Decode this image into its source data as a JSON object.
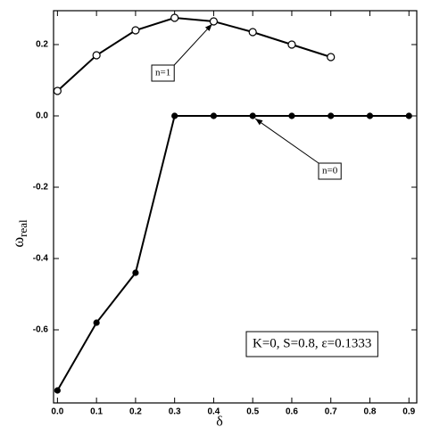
{
  "chart_data": {
    "type": "line",
    "x_label": "δ",
    "y_label": "ω",
    "y_label_subscript": "real",
    "annotation": "K=0, S=0.8, ε=0.1333",
    "x": [
      0.0,
      0.1,
      0.2,
      0.3,
      0.4,
      0.5,
      0.6,
      0.7,
      0.8,
      0.9
    ],
    "series": [
      {
        "name": "n=1",
        "color": "#000000",
        "marker": "open",
        "values": [
          0.07,
          0.17,
          0.24,
          0.275,
          0.265,
          0.235,
          0.2,
          0.165,
          null,
          null
        ]
      },
      {
        "name": "n=0",
        "color": "#000000",
        "marker": "filled",
        "values": [
          -0.77,
          -0.58,
          -0.44,
          0,
          0,
          0,
          0,
          0,
          0,
          0
        ]
      }
    ],
    "xlim": [
      -0.01,
      0.92
    ],
    "ylim": [
      -0.805,
      0.295
    ],
    "xticks": [
      {
        "value": 0,
        "label": "0.0"
      },
      0.1,
      0.2,
      0.3,
      0.4,
      0.5,
      0.6,
      0.7,
      0.8,
      0.9
    ],
    "yticks": [
      {
        "value": -0.6,
        "label": "-0.6"
      },
      -0.4,
      -0.2,
      {
        "value": 0,
        "label": "0.0"
      },
      0.2
    ],
    "grid": false
  }
}
